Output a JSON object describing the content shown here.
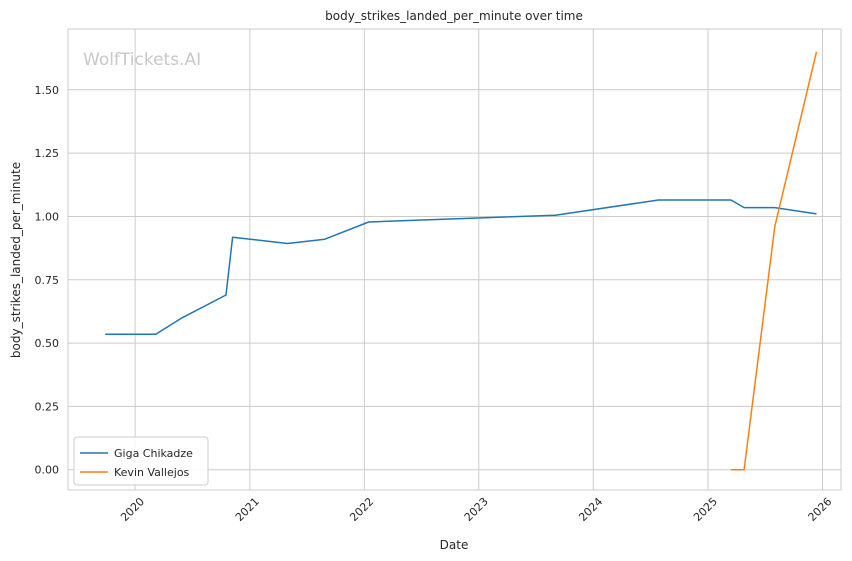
{
  "chart_data": {
    "type": "line",
    "title": "body_strikes_landed_per_minute over time",
    "xlabel": "Date",
    "ylabel": "body_strikes_landed_per_minute",
    "watermark": "WolfTickets.AI",
    "x_ticks": [
      "2020",
      "2021",
      "2022",
      "2023",
      "2024",
      "2025",
      "2026"
    ],
    "y_ticks": [
      "0.00",
      "0.25",
      "0.50",
      "0.75",
      "1.00",
      "1.25",
      "1.50"
    ],
    "xlim": [
      "2019-06-01",
      "2026-03-01"
    ],
    "ylim": [
      -0.08,
      1.74
    ],
    "grid": true,
    "legend_position": "lower-left",
    "series": [
      {
        "name": "Giga Chikadze",
        "color": "#1f77b4",
        "points": [
          {
            "x": "2019-09-28",
            "y": 0.535
          },
          {
            "x": "2020-03-07",
            "y": 0.535
          },
          {
            "x": "2020-05-30",
            "y": 0.6
          },
          {
            "x": "2020-10-17",
            "y": 0.69
          },
          {
            "x": "2020-11-07",
            "y": 0.918
          },
          {
            "x": "2021-05-01",
            "y": 0.893
          },
          {
            "x": "2021-08-28",
            "y": 0.91
          },
          {
            "x": "2022-01-15",
            "y": 0.978
          },
          {
            "x": "2023-09-02",
            "y": 1.005
          },
          {
            "x": "2024-07-27",
            "y": 1.065
          },
          {
            "x": "2025-03-15",
            "y": 1.065
          },
          {
            "x": "2025-04-26",
            "y": 1.035
          },
          {
            "x": "2025-08-02",
            "y": 1.035
          },
          {
            "x": "2025-12-13",
            "y": 1.01
          }
        ]
      },
      {
        "name": "Kevin Vallejos",
        "color": "#ff7f0e",
        "points": [
          {
            "x": "2025-03-15",
            "y": 0.0
          },
          {
            "x": "2025-04-26",
            "y": 0.0
          },
          {
            "x": "2025-08-02",
            "y": 0.96
          },
          {
            "x": "2025-12-13",
            "y": 1.65
          }
        ]
      }
    ]
  }
}
